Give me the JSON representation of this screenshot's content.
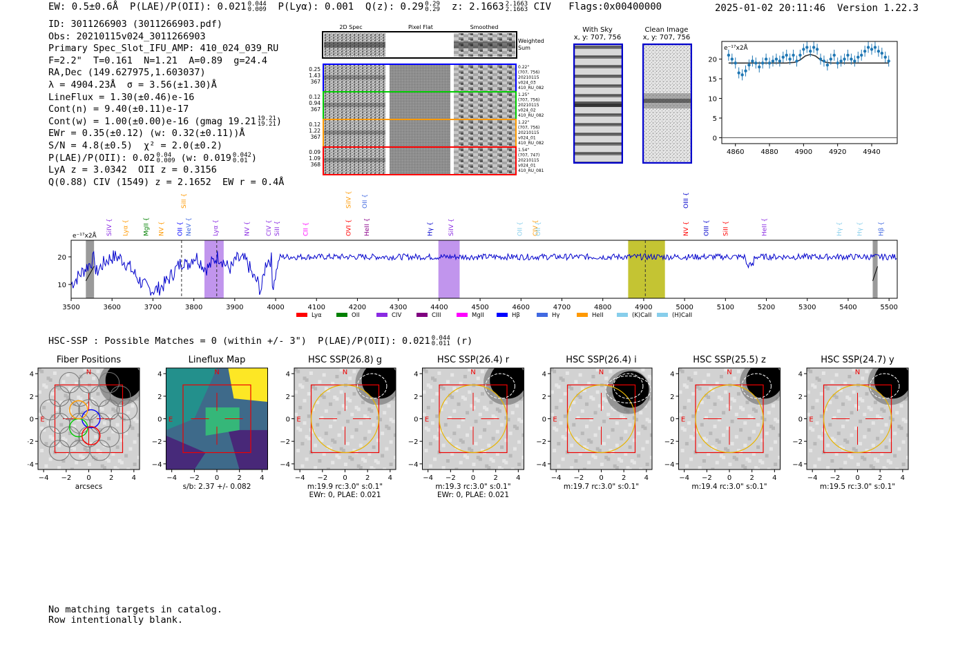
{
  "header": {
    "ew": "EW: 0.5±0.6Å",
    "plae_label": "P(LAE)/P(OII): 0.021",
    "plae_hi": "0.044",
    "plae_lo": "0.009",
    "plya_label": "P(Lyα): 0.001",
    "qz_label": "Q(z): 0.29",
    "qz_hi": "0.29",
    "qz_lo": "0.29",
    "z_label": "z: 2.1663",
    "z_hi": "2.1663",
    "z_lo": "2.1663",
    "z_line": "CIV",
    "flags": "Flags:0x00400000",
    "datetime": "2025-01-02 20:11:46",
    "version": "Version 1.22.3"
  },
  "info": {
    "id": "ID: 3011266903 (3011266903.pdf)",
    "obs": "Obs: 20210115v024_3011266903",
    "primary": "Primary Spec_Slot_IFU_AMP: 410_024_039_RU",
    "params": "F=2.2\"  T=0.161  N=1.21  A=0.89  g=24.4",
    "radec": "RA,Dec (149.627975,1.603037)",
    "lambda": "λ = 4904.23Å  σ = 3.56(±1.30)Å",
    "lineflux": "LineFlux = 1.30(±0.46)e-16",
    "contn": "Cont(n) = 9.40(±0.11)e-17",
    "contw": "Cont(w) = 1.00(±0.00)e-16 (gmag 19.21",
    "contw_hi": "19.21",
    "contw_lo": "19.21",
    "ewr": "EWr = 0.35(±0.12) (w: 0.32(±0.11))Å",
    "sn": "S/N = 4.8(±0.5)  χ² = 2.0(±0.2)",
    "plae_a": "P(LAE)/P(OII): 0.02",
    "plae_a_hi": "0.04",
    "plae_a_lo": "0.009",
    "plae_b": "(w: 0.019",
    "plae_b_hi": "0.042",
    "plae_b_lo": "0.01",
    "plae_b_end": ")",
    "lya": "LyA z = 3.0342  OII z = 0.3156",
    "qciv": "Q(0.88) CIV (1549) z = 2.1652  EW r = 0.4Å"
  },
  "stamps": {
    "col_labels": [
      "2D Spec",
      "Pixel Flat",
      "Smoothed"
    ],
    "weighted_label": "Weighted Sum",
    "rows": [
      {
        "v1": "0.25",
        "v2": "1.43",
        "v3": "367",
        "color": "#0000ff",
        "side1": "0.22\"",
        "side2": "(707, 756)",
        "side3": "20210115",
        "side4": "v024_03",
        "side5": "410_RU_082"
      },
      {
        "v1": "0.12",
        "v2": "0.94",
        "v3": "367",
        "color": "#00cc00",
        "side1": "1.25\"",
        "side2": "(707, 756)",
        "side3": "20210115",
        "side4": "v024_02",
        "side5": "410_RU_082"
      },
      {
        "v1": "0.12",
        "v2": "1.22",
        "v3": "367",
        "color": "#ff9900",
        "side1": "1.22\"",
        "side2": "(707, 756)",
        "side3": "20210115",
        "side4": "v024_01",
        "side5": "410_RU_082"
      },
      {
        "v1": "0.09",
        "v2": "1.09",
        "v3": "368",
        "color": "#ff0000",
        "side1": "1.54\"",
        "side2": "(707, 747)",
        "side3": "20210115",
        "side4": "v024_01",
        "side5": "410_RU_081"
      }
    ],
    "with_sky_title": "With Sky",
    "with_sky_sub": "x, y: 707, 756",
    "clean_title": "Clean Image",
    "clean_sub": "x, y: 707, 756"
  },
  "colors": {
    "spectrum": "#0000cc",
    "fit": "#333333",
    "points": "#1f77b4",
    "olive": "#b5b500",
    "purple": "#b17be8",
    "gray": "#888888"
  },
  "chart_data": [
    {
      "type": "scatter",
      "name": "line-fit-zoom",
      "ylabel": "e⁻¹⁷x2Å",
      "x_ticks": [
        4860,
        4880,
        4900,
        4920,
        4940
      ],
      "y_ticks": [
        0,
        5,
        10,
        15,
        20
      ],
      "xlim": [
        4852,
        4955
      ],
      "ylim": [
        -1.5,
        24.5
      ],
      "x": [
        4856,
        4858,
        4860,
        4862,
        4864,
        4866,
        4868,
        4870,
        4872,
        4874,
        4876,
        4878,
        4880,
        4882,
        4884,
        4886,
        4888,
        4890,
        4892,
        4894,
        4896,
        4898,
        4900,
        4902,
        4904,
        4906,
        4908,
        4910,
        4912,
        4914,
        4916,
        4918,
        4920,
        4922,
        4924,
        4926,
        4928,
        4930,
        4932,
        4934,
        4936,
        4938,
        4940,
        4942,
        4944,
        4946,
        4948,
        4950
      ],
      "y": [
        21,
        20,
        19,
        16.5,
        16,
        17,
        18.5,
        19.5,
        19,
        18,
        19,
        20,
        19,
        19.5,
        20,
        19.5,
        20.5,
        21,
        20,
        21,
        19.5,
        21,
        22.5,
        23,
        22,
        23,
        22.5,
        20,
        19.5,
        18.5,
        20,
        21,
        19,
        19.5,
        20,
        21,
        20,
        19.5,
        20.5,
        21,
        22,
        23,
        22.5,
        23,
        22,
        21.5,
        20.5,
        19.5
      ],
      "err": 1.4,
      "fit_x": [
        4856,
        4880,
        4890,
        4895,
        4898,
        4901,
        4904,
        4907,
        4910,
        4913,
        4916,
        4920,
        4950
      ],
      "fit_y": [
        19,
        19,
        19,
        19.2,
        19.8,
        20.8,
        21.2,
        20.8,
        19.8,
        19.2,
        19,
        19,
        19
      ]
    },
    {
      "type": "line",
      "name": "full-spectrum",
      "ylabel": "e⁻¹⁷x2Å",
      "xlim": [
        3500,
        5520
      ],
      "ylim": [
        5,
        26
      ],
      "x_ticks": [
        3500,
        3600,
        3700,
        3800,
        3900,
        4000,
        4100,
        4200,
        4300,
        4400,
        4500,
        4600,
        4700,
        4800,
        4900,
        5000,
        5100,
        5200,
        5300,
        5400,
        5500
      ],
      "y_ticks": [
        10,
        20
      ],
      "shaded_regions": [
        {
          "x0": 3826,
          "x1": 3873,
          "color": "#b17be8"
        },
        {
          "x0": 4398,
          "x1": 4450,
          "color": "#b17be8"
        },
        {
          "x0": 4862,
          "x1": 4952,
          "color": "#b5b500"
        },
        {
          "x0": 3536,
          "x1": 3556,
          "color": "#888888"
        },
        {
          "x0": 5460,
          "x1": 5472,
          "color": "#888888"
        }
      ],
      "vlines": [
        3770,
        3856,
        4904
      ],
      "line_labels": [
        {
          "label": "SiIV",
          "x": 3593,
          "color": "#8a2be2",
          "tier": 0
        },
        {
          "label": "Lyα",
          "x": 3633,
          "color": "#ff9900",
          "tier": 0
        },
        {
          "label": "MgII",
          "x": 3683,
          "color": "#008000",
          "tier": 0
        },
        {
          "label": "NV",
          "x": 3720,
          "color": "#ff9900",
          "tier": 0
        },
        {
          "label": "OII",
          "x": 3766,
          "color": "#0000ff",
          "tier": 0
        },
        {
          "label": "NeV",
          "x": 3787,
          "color": "#4169e1",
          "tier": 0
        },
        {
          "label": "SiII",
          "x": 3775,
          "color": "#ff9900",
          "tier": 1
        },
        {
          "label": "Lyα",
          "x": 3853,
          "color": "#8a2be2",
          "tier": 0
        },
        {
          "label": "NV",
          "x": 3930,
          "color": "#8a2be2",
          "tier": 0
        },
        {
          "label": "CIV",
          "x": 3983,
          "color": "#8a2be2",
          "tier": 0
        },
        {
          "label": "SiII",
          "x": 4003,
          "color": "#8a2be2",
          "tier": 0
        },
        {
          "label": "CII",
          "x": 4073,
          "color": "#ff00ff",
          "tier": 0
        },
        {
          "label": "OVI",
          "x": 4178,
          "color": "#ff0000",
          "tier": 0
        },
        {
          "label": "SiIV",
          "x": 4178,
          "color": "#ff9900",
          "tier": 1
        },
        {
          "label": "OII",
          "x": 4218,
          "color": "#4169e1",
          "tier": 1
        },
        {
          "label": "HeII",
          "x": 4223,
          "color": "#8b008b",
          "tier": 0
        },
        {
          "label": "Hγ",
          "x": 4377,
          "color": "#0000cc",
          "tier": 0
        },
        {
          "label": "SiIV",
          "x": 4429,
          "color": "#8a2be2",
          "tier": 0
        },
        {
          "label": "OII",
          "x": 4597,
          "color": "#87ceeb",
          "tier": 0
        },
        {
          "label": "CIV",
          "x": 4635,
          "color": "#ff9900",
          "tier": 0
        },
        {
          "label": "OII",
          "x": 4642,
          "color": "#87ceeb",
          "tier": 0
        },
        {
          "label": "OIII",
          "x": 5003,
          "color": "#0000cc",
          "tier": 1
        },
        {
          "label": "NV",
          "x": 5003,
          "color": "#ff0000",
          "tier": 0
        },
        {
          "label": "OIII",
          "x": 5053,
          "color": "#0000cc",
          "tier": 0
        },
        {
          "label": "SiII",
          "x": 5100,
          "color": "#ff0000",
          "tier": 0
        },
        {
          "label": "HeII",
          "x": 5195,
          "color": "#8a2be2",
          "tier": 0
        },
        {
          "label": "Hγ",
          "x": 5378,
          "color": "#87ceeb",
          "tier": 0
        },
        {
          "label": "Hγ",
          "x": 5428,
          "color": "#87ceeb",
          "tier": 0
        },
        {
          "label": "Hβ",
          "x": 5480,
          "color": "#4169e1",
          "tier": 0
        }
      ],
      "legend": [
        {
          "label": "Lyα",
          "color": "#ff0000"
        },
        {
          "label": "OII",
          "color": "#008000"
        },
        {
          "label": "CIV",
          "color": "#8a2be2"
        },
        {
          "label": "CIII",
          "color": "#800080"
        },
        {
          "label": "MgII",
          "color": "#ff00ff"
        },
        {
          "label": "Hβ",
          "color": "#0000ff"
        },
        {
          "label": "Hγ",
          "color": "#4169e1"
        },
        {
          "label": "HeII",
          "color": "#ff9900"
        },
        {
          "label": "(K)CaII",
          "color": "#87ceeb"
        },
        {
          "label": "(H)CaII",
          "color": "#87ceeb"
        }
      ]
    }
  ],
  "hsc_line": "HSC-SSP : Possible Matches = 0 (within +/- 3\")  P(LAE)/P(OII): 0.021",
  "hsc_hi": "0.044",
  "hsc_lo": "0.011",
  "hsc_end": "(r)",
  "cutouts": [
    {
      "title": "Fiber Positions",
      "kind": "fibers",
      "x_label": "arcsecs",
      "caption": ""
    },
    {
      "title": "Lineflux Map",
      "kind": "lineflux",
      "x_label": "s/b: 2.37 +/- 0.082",
      "caption": ""
    },
    {
      "title": "HSC SSP(26.8) g",
      "kind": "hsc",
      "x_label": "m:19.9 rc:3.0\"  s:0.1\"",
      "caption": "EWr: 0, PLAE: 0.021"
    },
    {
      "title": "HSC SSP(26.4) r",
      "kind": "hsc",
      "x_label": "m:19.3 rc:3.0\"  s:0.1\"",
      "caption": "EWr: 0, PLAE: 0.021"
    },
    {
      "title": "HSC SSP(26.4) i",
      "kind": "hsc",
      "x_label": "m:19.7 rc:3.0\"  s:0.1\"",
      "caption": ""
    },
    {
      "title": "HSC SSP(25.5) z",
      "kind": "hsc",
      "x_label": "m:19.4 rc:3.0\"  s:0.1\"",
      "caption": ""
    },
    {
      "title": "HSC SSP(24.7) y",
      "kind": "hsc",
      "x_label": "m:19.5 rc:3.0\"  s:0.1\"",
      "caption": ""
    }
  ],
  "cutout_ticks": [
    "−4",
    "−2",
    "0",
    "2",
    "4"
  ],
  "compass_n": "N",
  "compass_e": "E",
  "footer": {
    "line1": "No matching targets in catalog.",
    "line2": "Row intentionally blank."
  }
}
